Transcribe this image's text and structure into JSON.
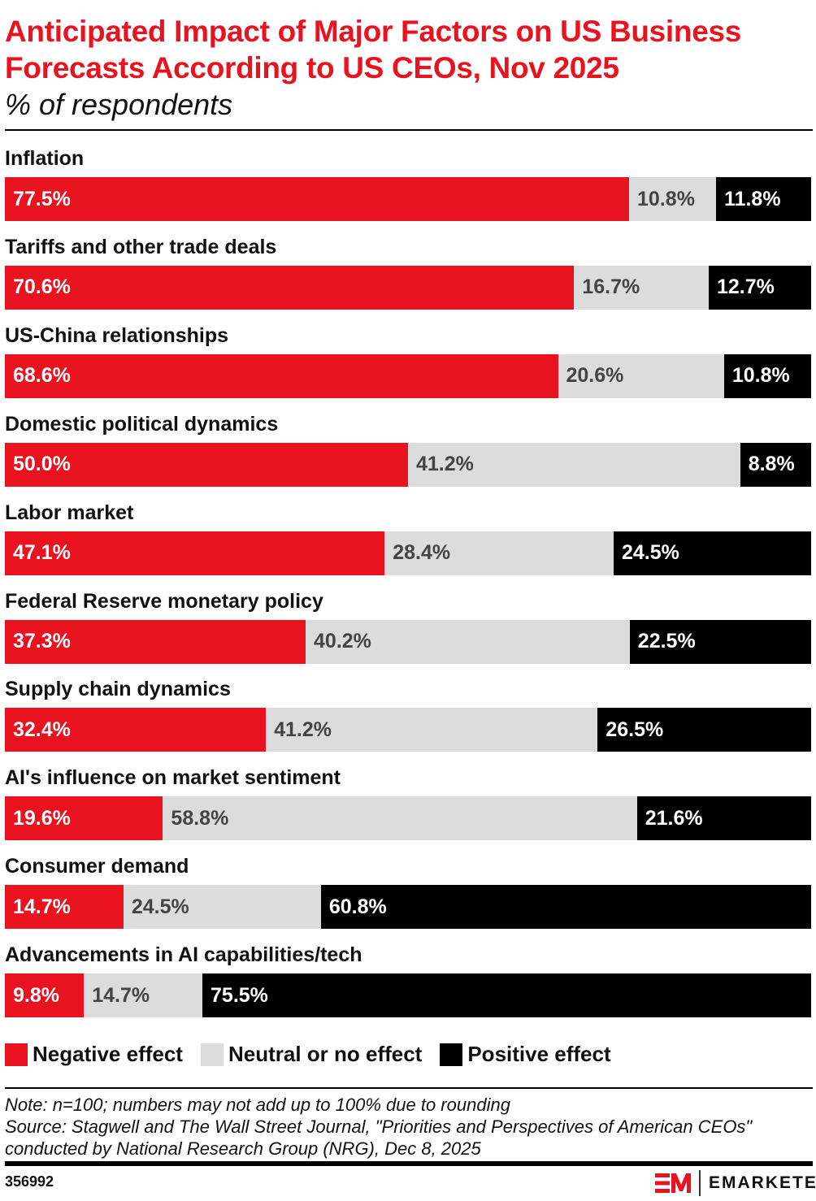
{
  "chart_data": {
    "type": "bar",
    "orientation": "horizontal",
    "stacked": true,
    "title": "Anticipated Impact of Major Factors on US Business Forecasts According to US CEOs, Nov 2025",
    "subtitle": "% of respondents",
    "categories": [
      "Inflation",
      "Tariffs and other trade deals",
      "US-China relationships",
      "Domestic political dynamics",
      "Labor market",
      "Federal Reserve monetary policy",
      "Supply chain dynamics",
      "AI's influence on market sentiment",
      "Consumer demand",
      "Advancements in AI capabilities/tech"
    ],
    "series": [
      {
        "name": "Negative effect",
        "color": "#e8131f",
        "text_color": "#ffffff",
        "values": [
          77.5,
          70.6,
          68.6,
          50.0,
          47.1,
          37.3,
          32.4,
          19.6,
          14.7,
          9.8
        ],
        "labels": [
          "77.5%",
          "70.6%",
          "68.6%",
          "50.0%",
          "47.1%",
          "37.3%",
          "32.4%",
          "19.6%",
          "14.7%",
          "9.8%"
        ]
      },
      {
        "name": "Neutral or no effect",
        "color": "#dcdcdc",
        "text_color": "#444444",
        "values": [
          10.8,
          16.7,
          20.6,
          41.2,
          28.4,
          40.2,
          41.2,
          58.8,
          24.5,
          14.7
        ],
        "labels": [
          "10.8%",
          "16.7%",
          "20.6%",
          "41.2%",
          "28.4%",
          "40.2%",
          "41.2%",
          "58.8%",
          "24.5%",
          "14.7%"
        ]
      },
      {
        "name": "Positive effect",
        "color": "#000000",
        "text_color": "#ffffff",
        "values": [
          11.8,
          12.7,
          10.8,
          8.8,
          24.5,
          22.5,
          26.5,
          21.6,
          60.8,
          75.5
        ],
        "labels": [
          "11.8%",
          "12.7%",
          "10.8%",
          "8.8%",
          "24.5%",
          "22.5%",
          "26.5%",
          "21.6%",
          "60.8%",
          "75.5%"
        ]
      }
    ],
    "legend_position": "bottom-left",
    "grid": false
  },
  "footer": {
    "note": "Note: n=100; numbers may not add up to 100% due to rounding",
    "source1": "Source: Stagwell and The Wall Street Journal, \"Priorities and Perspectives of American CEOs\"",
    "source2": "conducted by National Research Group (NRG), Dec 8, 2025",
    "chart_id": "356992",
    "brand": "EMARKETER",
    "logo_letters": "EM"
  }
}
